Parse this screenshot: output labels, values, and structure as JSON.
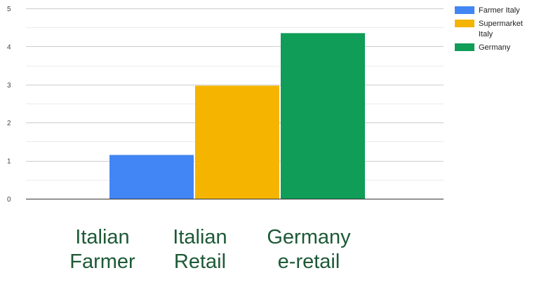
{
  "chart_data": {
    "type": "bar",
    "title": "",
    "xlabel": "",
    "ylabel": "",
    "ylim": [
      0,
      5
    ],
    "yticks": [
      "0",
      "1",
      "2",
      "3",
      "4",
      "5"
    ],
    "grid": true,
    "legend_position": "right",
    "categories": [
      "Italian\nFarmer",
      "Italian\nRetail",
      "Germany\ne-retail"
    ],
    "series": [
      {
        "name": "Farmer Italy",
        "color": "#4285f4",
        "value": 1.15
      },
      {
        "name": "Supermarket Italy",
        "color": "#f4b400",
        "value": 2.97
      },
      {
        "name": "Germany",
        "color": "#0f9d58",
        "value": 4.35
      }
    ]
  }
}
